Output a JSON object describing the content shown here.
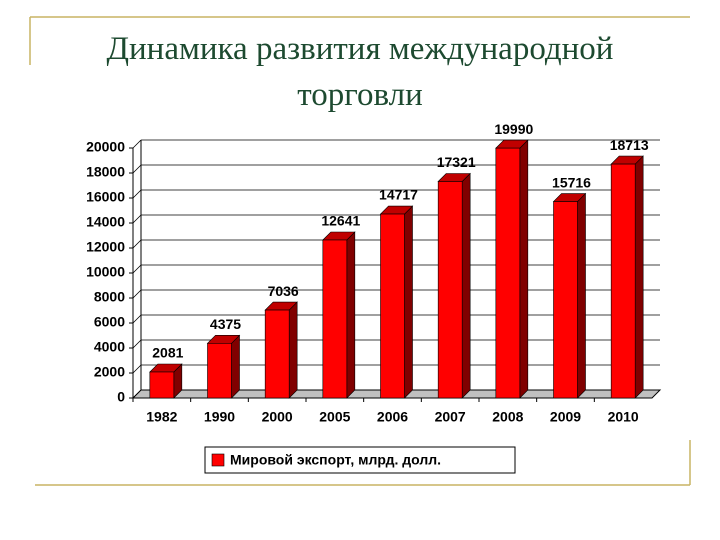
{
  "chart_data": {
    "type": "bar3d",
    "title": "Динамика развития международной торговли",
    "categories": [
      "1982",
      "1990",
      "2000",
      "2005",
      "2006",
      "2007",
      "2008",
      "2009",
      "2010"
    ],
    "series": [
      {
        "name": "Мировой экспорт, млрд. долл.",
        "color": "#ff0000",
        "values": [
          2081,
          4375,
          7036,
          12641,
          14717,
          17321,
          19990,
          15716,
          18713
        ]
      }
    ],
    "ylim": [
      0,
      20000
    ],
    "yticks": [
      0,
      2000,
      4000,
      6000,
      8000,
      10000,
      12000,
      14000,
      16000,
      18000,
      20000
    ],
    "grid": true,
    "legend": "bottom"
  }
}
